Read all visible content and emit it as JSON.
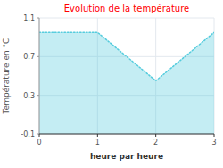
{
  "chart_data": {
    "type": "area",
    "title": "Evolution de la température",
    "x_label": "heure par heure",
    "y_label": "Température en °C",
    "x": [
      0,
      1,
      2,
      3
    ],
    "values": [
      0.95,
      0.95,
      0.45,
      0.95
    ],
    "color": "#55ccdd",
    "line_style": "dotted",
    "xlim": [
      0,
      3
    ],
    "ylim": [
      -0.1,
      1.1
    ],
    "xticks": [
      0,
      1,
      2,
      3
    ],
    "yticks": [
      -0.1,
      0.3,
      0.7,
      1.1
    ],
    "grid": true
  }
}
